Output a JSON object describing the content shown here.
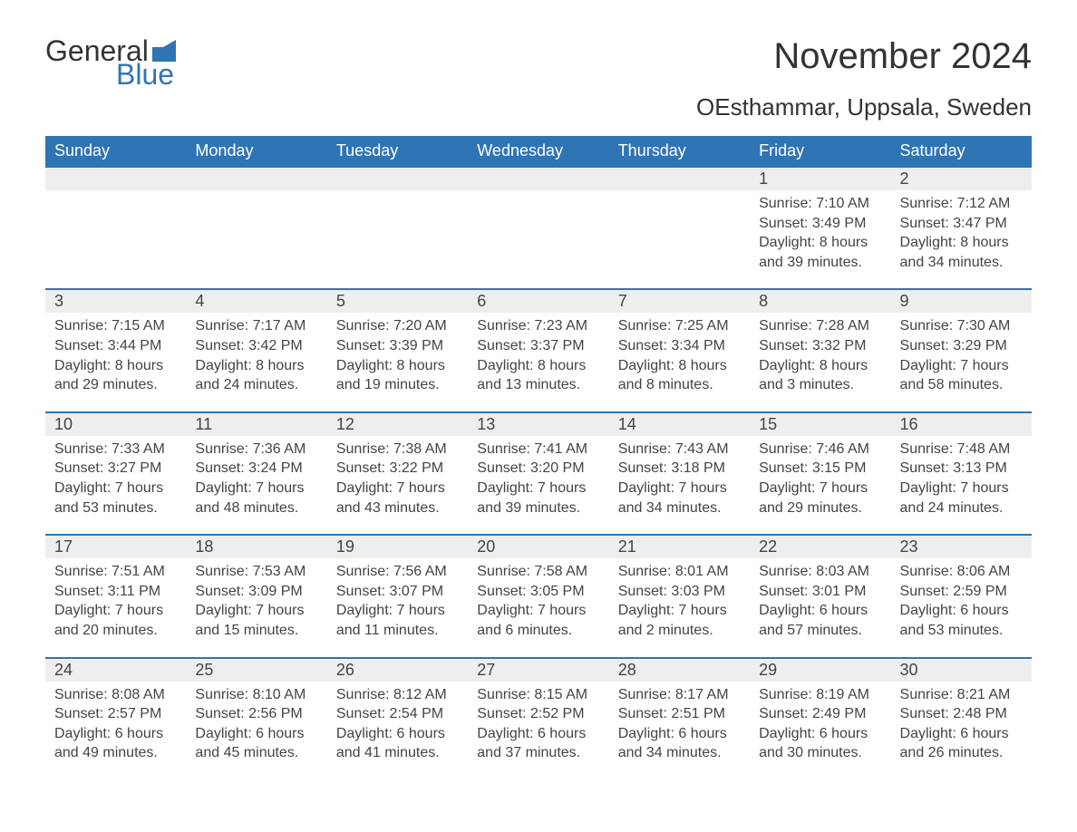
{
  "brand": {
    "word1": "General",
    "word2": "Blue",
    "word1_color": "#333333",
    "word2_color": "#2f74b5",
    "flag_color": "#2f74b5"
  },
  "title": "November 2024",
  "location": "OEsthammar, Uppsala, Sweden",
  "colors": {
    "header_bg": "#2f74b5",
    "header_text": "#ffffff",
    "daynum_bg": "#eeeeee",
    "row_border": "#2f74b5",
    "body_text": "#444444",
    "page_bg": "#ffffff"
  },
  "day_headers": [
    "Sunday",
    "Monday",
    "Tuesday",
    "Wednesday",
    "Thursday",
    "Friday",
    "Saturday"
  ],
  "weeks": [
    [
      null,
      null,
      null,
      null,
      null,
      {
        "n": "1",
        "sunrise": "Sunrise: 7:10 AM",
        "sunset": "Sunset: 3:49 PM",
        "d1": "Daylight: 8 hours",
        "d2": "and 39 minutes."
      },
      {
        "n": "2",
        "sunrise": "Sunrise: 7:12 AM",
        "sunset": "Sunset: 3:47 PM",
        "d1": "Daylight: 8 hours",
        "d2": "and 34 minutes."
      }
    ],
    [
      {
        "n": "3",
        "sunrise": "Sunrise: 7:15 AM",
        "sunset": "Sunset: 3:44 PM",
        "d1": "Daylight: 8 hours",
        "d2": "and 29 minutes."
      },
      {
        "n": "4",
        "sunrise": "Sunrise: 7:17 AM",
        "sunset": "Sunset: 3:42 PM",
        "d1": "Daylight: 8 hours",
        "d2": "and 24 minutes."
      },
      {
        "n": "5",
        "sunrise": "Sunrise: 7:20 AM",
        "sunset": "Sunset: 3:39 PM",
        "d1": "Daylight: 8 hours",
        "d2": "and 19 minutes."
      },
      {
        "n": "6",
        "sunrise": "Sunrise: 7:23 AM",
        "sunset": "Sunset: 3:37 PM",
        "d1": "Daylight: 8 hours",
        "d2": "and 13 minutes."
      },
      {
        "n": "7",
        "sunrise": "Sunrise: 7:25 AM",
        "sunset": "Sunset: 3:34 PM",
        "d1": "Daylight: 8 hours",
        "d2": "and 8 minutes."
      },
      {
        "n": "8",
        "sunrise": "Sunrise: 7:28 AM",
        "sunset": "Sunset: 3:32 PM",
        "d1": "Daylight: 8 hours",
        "d2": "and 3 minutes."
      },
      {
        "n": "9",
        "sunrise": "Sunrise: 7:30 AM",
        "sunset": "Sunset: 3:29 PM",
        "d1": "Daylight: 7 hours",
        "d2": "and 58 minutes."
      }
    ],
    [
      {
        "n": "10",
        "sunrise": "Sunrise: 7:33 AM",
        "sunset": "Sunset: 3:27 PM",
        "d1": "Daylight: 7 hours",
        "d2": "and 53 minutes."
      },
      {
        "n": "11",
        "sunrise": "Sunrise: 7:36 AM",
        "sunset": "Sunset: 3:24 PM",
        "d1": "Daylight: 7 hours",
        "d2": "and 48 minutes."
      },
      {
        "n": "12",
        "sunrise": "Sunrise: 7:38 AM",
        "sunset": "Sunset: 3:22 PM",
        "d1": "Daylight: 7 hours",
        "d2": "and 43 minutes."
      },
      {
        "n": "13",
        "sunrise": "Sunrise: 7:41 AM",
        "sunset": "Sunset: 3:20 PM",
        "d1": "Daylight: 7 hours",
        "d2": "and 39 minutes."
      },
      {
        "n": "14",
        "sunrise": "Sunrise: 7:43 AM",
        "sunset": "Sunset: 3:18 PM",
        "d1": "Daylight: 7 hours",
        "d2": "and 34 minutes."
      },
      {
        "n": "15",
        "sunrise": "Sunrise: 7:46 AM",
        "sunset": "Sunset: 3:15 PM",
        "d1": "Daylight: 7 hours",
        "d2": "and 29 minutes."
      },
      {
        "n": "16",
        "sunrise": "Sunrise: 7:48 AM",
        "sunset": "Sunset: 3:13 PM",
        "d1": "Daylight: 7 hours",
        "d2": "and 24 minutes."
      }
    ],
    [
      {
        "n": "17",
        "sunrise": "Sunrise: 7:51 AM",
        "sunset": "Sunset: 3:11 PM",
        "d1": "Daylight: 7 hours",
        "d2": "and 20 minutes."
      },
      {
        "n": "18",
        "sunrise": "Sunrise: 7:53 AM",
        "sunset": "Sunset: 3:09 PM",
        "d1": "Daylight: 7 hours",
        "d2": "and 15 minutes."
      },
      {
        "n": "19",
        "sunrise": "Sunrise: 7:56 AM",
        "sunset": "Sunset: 3:07 PM",
        "d1": "Daylight: 7 hours",
        "d2": "and 11 minutes."
      },
      {
        "n": "20",
        "sunrise": "Sunrise: 7:58 AM",
        "sunset": "Sunset: 3:05 PM",
        "d1": "Daylight: 7 hours",
        "d2": "and 6 minutes."
      },
      {
        "n": "21",
        "sunrise": "Sunrise: 8:01 AM",
        "sunset": "Sunset: 3:03 PM",
        "d1": "Daylight: 7 hours",
        "d2": "and 2 minutes."
      },
      {
        "n": "22",
        "sunrise": "Sunrise: 8:03 AM",
        "sunset": "Sunset: 3:01 PM",
        "d1": "Daylight: 6 hours",
        "d2": "and 57 minutes."
      },
      {
        "n": "23",
        "sunrise": "Sunrise: 8:06 AM",
        "sunset": "Sunset: 2:59 PM",
        "d1": "Daylight: 6 hours",
        "d2": "and 53 minutes."
      }
    ],
    [
      {
        "n": "24",
        "sunrise": "Sunrise: 8:08 AM",
        "sunset": "Sunset: 2:57 PM",
        "d1": "Daylight: 6 hours",
        "d2": "and 49 minutes."
      },
      {
        "n": "25",
        "sunrise": "Sunrise: 8:10 AM",
        "sunset": "Sunset: 2:56 PM",
        "d1": "Daylight: 6 hours",
        "d2": "and 45 minutes."
      },
      {
        "n": "26",
        "sunrise": "Sunrise: 8:12 AM",
        "sunset": "Sunset: 2:54 PM",
        "d1": "Daylight: 6 hours",
        "d2": "and 41 minutes."
      },
      {
        "n": "27",
        "sunrise": "Sunrise: 8:15 AM",
        "sunset": "Sunset: 2:52 PM",
        "d1": "Daylight: 6 hours",
        "d2": "and 37 minutes."
      },
      {
        "n": "28",
        "sunrise": "Sunrise: 8:17 AM",
        "sunset": "Sunset: 2:51 PM",
        "d1": "Daylight: 6 hours",
        "d2": "and 34 minutes."
      },
      {
        "n": "29",
        "sunrise": "Sunrise: 8:19 AM",
        "sunset": "Sunset: 2:49 PM",
        "d1": "Daylight: 6 hours",
        "d2": "and 30 minutes."
      },
      {
        "n": "30",
        "sunrise": "Sunrise: 8:21 AM",
        "sunset": "Sunset: 2:48 PM",
        "d1": "Daylight: 6 hours",
        "d2": "and 26 minutes."
      }
    ]
  ]
}
